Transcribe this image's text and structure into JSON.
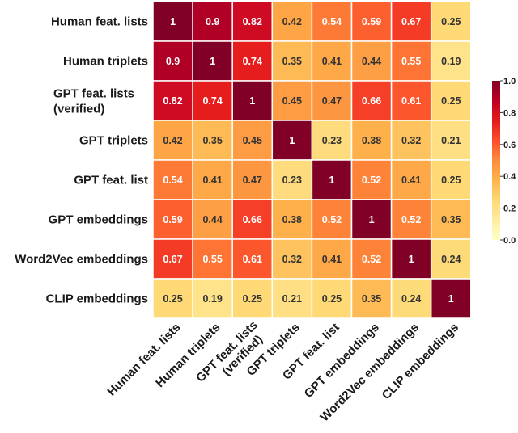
{
  "chart_data": {
    "type": "heatmap",
    "title": "",
    "xlabel": "",
    "ylabel": "",
    "row_labels": [
      [
        "Human feat. lists"
      ],
      [
        "Human triplets"
      ],
      [
        "GPT feat. lists",
        "(verified)"
      ],
      [
        "GPT triplets"
      ],
      [
        "GPT feat. list"
      ],
      [
        "GPT embeddings"
      ],
      [
        "Word2Vec embeddings"
      ],
      [
        "CLIP embeddings"
      ]
    ],
    "col_labels": [
      [
        "Human feat. lists"
      ],
      [
        "Human triplets"
      ],
      [
        "GPT feat. lists",
        "(verified)"
      ],
      [
        "GPT triplets"
      ],
      [
        "GPT feat. list"
      ],
      [
        "GPT embeddings"
      ],
      [
        "Word2Vec embeddings"
      ],
      [
        "CLIP embeddings"
      ]
    ],
    "values": [
      [
        1,
        0.9,
        0.82,
        0.42,
        0.54,
        0.59,
        0.67,
        0.25
      ],
      [
        0.9,
        1,
        0.74,
        0.35,
        0.41,
        0.44,
        0.55,
        0.19
      ],
      [
        0.82,
        0.74,
        1,
        0.45,
        0.47,
        0.66,
        0.61,
        0.25
      ],
      [
        0.42,
        0.35,
        0.45,
        1,
        0.23,
        0.38,
        0.32,
        0.21
      ],
      [
        0.54,
        0.41,
        0.47,
        0.23,
        1,
        0.52,
        0.41,
        0.25
      ],
      [
        0.59,
        0.44,
        0.66,
        0.38,
        0.52,
        1,
        0.52,
        0.35
      ],
      [
        0.67,
        0.55,
        0.61,
        0.32,
        0.41,
        0.52,
        1,
        0.24
      ],
      [
        0.25,
        0.19,
        0.25,
        0.21,
        0.25,
        0.35,
        0.24,
        1
      ]
    ],
    "annotations": "values shown in cells",
    "colormap": "YlOrRd",
    "colorbar": {
      "range": [
        0.0,
        1.0
      ],
      "ticks": [
        "0.0",
        "0.2",
        "0.4",
        "0.6",
        "0.8",
        "1.0"
      ],
      "placement": "right"
    },
    "colors": {
      "low": "#ffffcc",
      "mid_low": "#fed976",
      "mid": "#feb24c",
      "mid_high": "#fd8d3c",
      "high": "#fc4e2a",
      "higher": "#e31a1c",
      "top": "#800026",
      "cell_border": "#ffffff",
      "dark_text": "#333333",
      "light_text": "#ffffff"
    }
  }
}
